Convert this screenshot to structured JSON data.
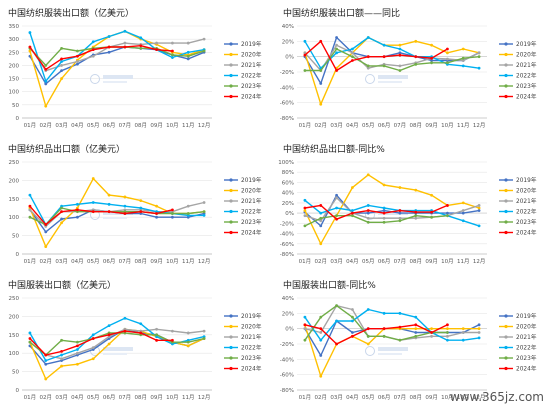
{
  "watermark": "www.365jz.com",
  "chart_data": [
    {
      "type": "line",
      "title": "中国纺织服装出口额（亿美元）",
      "categories": [
        "01月",
        "02月",
        "03月",
        "04月",
        "05月",
        "06月",
        "07月",
        "08月",
        "09月",
        "10月",
        "11月",
        "12月"
      ],
      "ylim": [
        0,
        350
      ],
      "yticks": [
        0,
        50,
        100,
        150,
        200,
        250,
        300,
        350
      ],
      "legend_position": "right",
      "series": [
        {
          "name": "2019年",
          "color": "#4472c4",
          "values": [
            235,
            130,
            180,
            205,
            240,
            250,
            270,
            265,
            260,
            240,
            225,
            250
          ]
        },
        {
          "name": "2020年",
          "color": "#ffc000",
          "values": [
            255,
            45,
            150,
            220,
            270,
            310,
            330,
            300,
            280,
            250,
            240,
            260
          ]
        },
        {
          "name": "2021年",
          "color": "#a5a5a5",
          "values": [
            270,
            180,
            200,
            215,
            235,
            270,
            285,
            280,
            285,
            285,
            285,
            300
          ]
        },
        {
          "name": "2022年",
          "color": "#00b0f0",
          "values": [
            325,
            140,
            215,
            235,
            290,
            310,
            330,
            305,
            260,
            230,
            250,
            260
          ]
        },
        {
          "name": "2023年",
          "color": "#70ad47",
          "values": [
            265,
            200,
            265,
            255,
            265,
            270,
            270,
            265,
            265,
            240,
            235,
            255
          ]
        },
        {
          "name": "2024年",
          "color": "#ff0000",
          "values": [
            270,
            185,
            225,
            235,
            260,
            270,
            270,
            275,
            260,
            255,
            null,
            null
          ]
        }
      ]
    },
    {
      "type": "line",
      "title": "中国纺织服装出口额——同比",
      "categories": [
        "01月",
        "02月",
        "03月",
        "04月",
        "05月",
        "06月",
        "07月",
        "08月",
        "09月",
        "10月",
        "11月",
        "12月"
      ],
      "ylim": [
        -80,
        40
      ],
      "yticks": [
        -80,
        -60,
        -40,
        -20,
        0,
        20,
        40
      ],
      "tick_suffix": "%",
      "legend_position": "right",
      "series": [
        {
          "name": "2019年",
          "color": "#4472c4",
          "values": [
            0,
            -35,
            25,
            5,
            0,
            0,
            5,
            0,
            -5,
            -5,
            -5,
            5
          ]
        },
        {
          "name": "2020年",
          "color": "#ffc000",
          "values": [
            5,
            -62,
            -15,
            5,
            25,
            15,
            15,
            20,
            15,
            5,
            10,
            5
          ]
        },
        {
          "name": "2021年",
          "color": "#a5a5a5",
          "values": [
            5,
            -18,
            15,
            5,
            -15,
            -10,
            -12,
            -8,
            -2,
            -3,
            -5,
            5
          ]
        },
        {
          "name": "2022年",
          "color": "#00b0f0",
          "values": [
            20,
            -15,
            5,
            10,
            25,
            15,
            10,
            0,
            0,
            -10,
            -12,
            -15
          ]
        },
        {
          "name": "2023年",
          "color": "#70ad47",
          "values": [
            -18,
            -18,
            10,
            0,
            -12,
            -12,
            -18,
            -10,
            -8,
            -8,
            -2,
            0
          ]
        },
        {
          "name": "2024年",
          "color": "#ff0000",
          "values": [
            2,
            20,
            -18,
            -5,
            0,
            0,
            2,
            0,
            -2,
            10,
            null,
            null
          ]
        }
      ]
    },
    {
      "type": "line",
      "title": "中国纺织品出口额（亿美元）",
      "categories": [
        "01月",
        "02月",
        "03月",
        "04月",
        "05月",
        "06月",
        "07月",
        "08月",
        "09月",
        "10月",
        "11月",
        "12月"
      ],
      "ylim": [
        0,
        250
      ],
      "yticks": [
        0,
        50,
        100,
        150,
        200,
        250
      ],
      "legend_position": "right",
      "series": [
        {
          "name": "2019年",
          "color": "#4472c4",
          "values": [
            120,
            60,
            95,
            100,
            120,
            115,
            110,
            110,
            100,
            100,
            100,
            110
          ]
        },
        {
          "name": "2020年",
          "color": "#ffc000",
          "values": [
            125,
            20,
            85,
            125,
            205,
            160,
            155,
            145,
            130,
            110,
            110,
            115
          ]
        },
        {
          "name": "2021年",
          "color": "#a5a5a5",
          "values": [
            120,
            75,
            115,
            115,
            120,
            115,
            120,
            120,
            115,
            115,
            130,
            140
          ]
        },
        {
          "name": "2022年",
          "color": "#00b0f0",
          "values": [
            160,
            80,
            130,
            135,
            140,
            135,
            130,
            125,
            115,
            110,
            105,
            105
          ]
        },
        {
          "name": "2023年",
          "color": "#70ad47",
          "values": [
            100,
            80,
            125,
            115,
            115,
            115,
            115,
            115,
            110,
            110,
            110,
            115
          ]
        },
        {
          "name": "2024年",
          "color": "#ff0000",
          "values": [
            130,
            80,
            115,
            120,
            115,
            115,
            110,
            115,
            110,
            120,
            null,
            null
          ]
        }
      ]
    },
    {
      "type": "line",
      "title": "中国纺织品出口额-同比%",
      "categories": [
        "01月",
        "02月",
        "03月",
        "04月",
        "05月",
        "06月",
        "07月",
        "08月",
        "09月",
        "10月",
        "11月",
        "12月"
      ],
      "ylim": [
        -80,
        100
      ],
      "yticks": [
        -80,
        -60,
        -40,
        -20,
        0,
        20,
        40,
        60,
        80,
        100
      ],
      "tick_suffix": "%",
      "legend_position": "right",
      "series": [
        {
          "name": "2019年",
          "color": "#4472c4",
          "values": [
            2,
            -25,
            35,
            0,
            0,
            5,
            0,
            0,
            0,
            0,
            0,
            5
          ]
        },
        {
          "name": "2020年",
          "color": "#ffc000",
          "values": [
            5,
            -60,
            -5,
            50,
            75,
            55,
            50,
            45,
            35,
            15,
            20,
            10
          ]
        },
        {
          "name": "2021年",
          "color": "#a5a5a5",
          "values": [
            -5,
            -15,
            30,
            0,
            -10,
            -10,
            -10,
            -10,
            -8,
            -5,
            5,
            15
          ]
        },
        {
          "name": "2022年",
          "color": "#00b0f0",
          "values": [
            25,
            0,
            10,
            5,
            15,
            10,
            5,
            5,
            5,
            -5,
            -15,
            -25
          ]
        },
        {
          "name": "2023年",
          "color": "#70ad47",
          "values": [
            -25,
            -10,
            -5,
            -5,
            -18,
            -18,
            -15,
            -5,
            -8,
            -5,
            null,
            null
          ]
        },
        {
          "name": "2024年",
          "color": "#ff0000",
          "values": [
            10,
            15,
            -12,
            0,
            5,
            0,
            5,
            2,
            2,
            15,
            null,
            null
          ]
        }
      ]
    },
    {
      "type": "line",
      "title": "中国服装出口额（亿美元）",
      "categories": [
        "01月",
        "02月",
        "03月",
        "04月",
        "05月",
        "06月",
        "07月",
        "08月",
        "09月",
        "10月",
        "11月",
        "12月"
      ],
      "ylim": [
        0,
        250
      ],
      "yticks": [
        0,
        50,
        100,
        150,
        200,
        250
      ],
      "legend_position": "right",
      "series": [
        {
          "name": "2019年",
          "color": "#4472c4",
          "values": [
            120,
            70,
            80,
            95,
            110,
            140,
            165,
            155,
            150,
            130,
            120,
            140
          ]
        },
        {
          "name": "2020年",
          "color": "#ffc000",
          "values": [
            130,
            30,
            65,
            70,
            85,
            125,
            165,
            160,
            145,
            130,
            120,
            140
          ]
        },
        {
          "name": "2021年",
          "color": "#a5a5a5",
          "values": [
            130,
            95,
            85,
            100,
            115,
            145,
            165,
            160,
            165,
            160,
            155,
            160
          ]
        },
        {
          "name": "2022年",
          "color": "#00b0f0",
          "values": [
            155,
            80,
            95,
            110,
            150,
            175,
            195,
            180,
            145,
            125,
            135,
            145
          ]
        },
        {
          "name": "2023年",
          "color": "#70ad47",
          "values": [
            130,
            95,
            135,
            130,
            140,
            155,
            155,
            150,
            150,
            130,
            130,
            140
          ]
        },
        {
          "name": "2024年",
          "color": "#ff0000",
          "values": [
            140,
            95,
            105,
            120,
            140,
            150,
            160,
            155,
            135,
            135,
            null,
            null
          ]
        }
      ]
    },
    {
      "type": "line",
      "title": "中国服装出口额-同比%",
      "categories": [
        "01月",
        "02月",
        "03月",
        "04月",
        "05月",
        "06月",
        "07月",
        "08月",
        "09月",
        "10月",
        "11月",
        "12月"
      ],
      "ylim": [
        -80,
        40
      ],
      "yticks": [
        -80,
        -60,
        -40,
        -20,
        0,
        20,
        40
      ],
      "tick_suffix": "%",
      "legend_position": "right",
      "series": [
        {
          "name": "2019年",
          "color": "#4472c4",
          "values": [
            0,
            -35,
            10,
            -5,
            0,
            0,
            0,
            -5,
            -5,
            -5,
            -5,
            5
          ]
        },
        {
          "name": "2020年",
          "color": "#ffc000",
          "values": [
            5,
            -62,
            -20,
            -10,
            -20,
            0,
            0,
            0,
            0,
            0,
            0,
            0
          ]
        },
        {
          "name": "2021年",
          "color": "#a5a5a5",
          "values": [
            0,
            -5,
            30,
            25,
            -10,
            -10,
            -15,
            -12,
            -10,
            -10,
            -5,
            -5
          ]
        },
        {
          "name": "2022年",
          "color": "#00b0f0",
          "values": [
            15,
            -15,
            10,
            10,
            25,
            20,
            20,
            15,
            -5,
            -15,
            -15,
            -12
          ]
        },
        {
          "name": "2023年",
          "color": "#70ad47",
          "values": [
            -15,
            15,
            30,
            15,
            -10,
            -10,
            -15,
            -10,
            -5,
            -5,
            null,
            null
          ]
        },
        {
          "name": "2024年",
          "color": "#ff0000",
          "values": [
            5,
            0,
            -20,
            -10,
            0,
            0,
            2,
            5,
            -5,
            5,
            null,
            null
          ]
        }
      ]
    }
  ]
}
